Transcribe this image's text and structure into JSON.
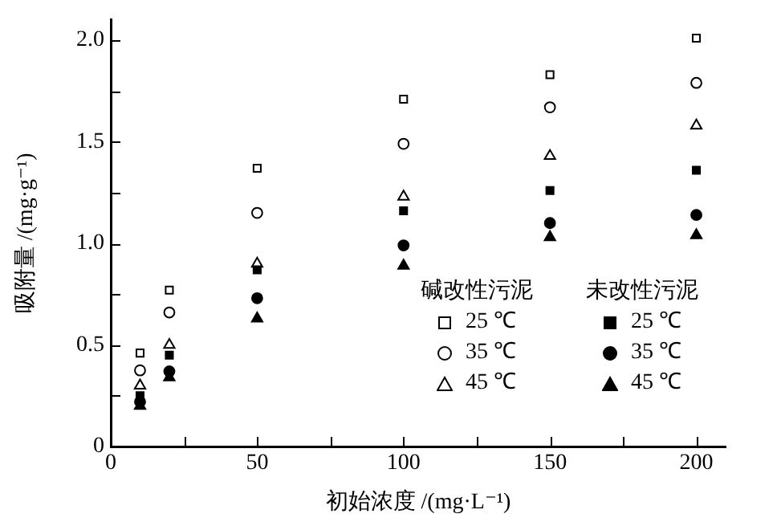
{
  "chart_data": {
    "type": "scatter",
    "xlabel": "初始浓度 /(mg·L⁻¹)",
    "ylabel": "吸附量 /(mg·g⁻¹)",
    "x": [
      10,
      20,
      50,
      100,
      150,
      200
    ],
    "xlim": [
      0,
      210
    ],
    "xticks": [
      0,
      {
        "value": 25,
        "label": null
      },
      50,
      {
        "value": 75,
        "label": null
      },
      100,
      {
        "value": 125,
        "label": null
      },
      150,
      {
        "value": 175,
        "label": null
      },
      200
    ],
    "ylim": [
      0,
      2.1
    ],
    "yticks": [
      0,
      {
        "value": 0.25,
        "label": null
      },
      0.5,
      {
        "value": 0.75,
        "label": null
      },
      {
        "value": 1,
        "label": "1.0"
      },
      {
        "value": 1.25,
        "label": null
      },
      1.5,
      {
        "value": 1.75,
        "label": null
      },
      {
        "value": 2,
        "label": "2.0"
      }
    ],
    "grid": false,
    "legend": "bottom right",
    "annotations": [
      "碱改性污泥",
      "未改性污泥"
    ],
    "series": [
      {
        "name": "25 ℃",
        "color": "#ffffff",
        "marker": "square",
        "values": [
          0.46,
          0.77,
          1.37,
          1.71,
          1.83,
          2.01
        ]
      },
      {
        "name": "35 ℃",
        "color": "#ffffff",
        "marker": "circle",
        "values": [
          0.375,
          0.66,
          1.15,
          1.49,
          1.67,
          1.79
        ]
      },
      {
        "name": "45 ℃",
        "color": "#ffffff",
        "marker": "triangle",
        "values": [
          0.3,
          0.5,
          0.9,
          1.23,
          1.43,
          1.58
        ]
      },
      {
        "name": "25 ℃",
        "color": "#000000",
        "marker": "square",
        "values": [
          0.25,
          0.45,
          0.87,
          1.16,
          1.26,
          1.36
        ]
      },
      {
        "name": "35 ℃",
        "color": "#000000",
        "marker": "circle",
        "values": [
          0.22,
          0.37,
          0.73,
          0.99,
          1.1,
          1.14
        ]
      },
      {
        "name": "45 ℃",
        "color": "#000000",
        "marker": "triangle",
        "values": [
          0.2,
          0.34,
          0.63,
          0.89,
          1.03,
          1.04
        ]
      }
    ]
  }
}
